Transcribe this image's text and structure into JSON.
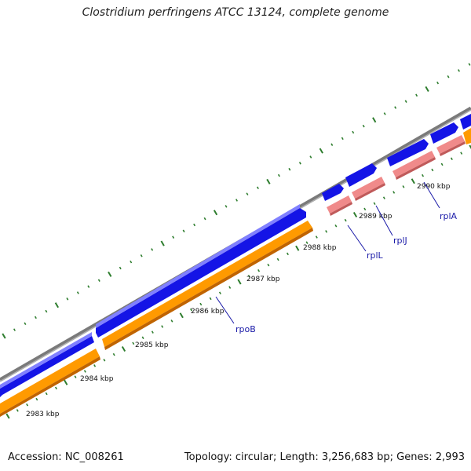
{
  "title": "Clostridium perfringens ATCC 13124, complete genome",
  "footer": {
    "accession": "Accession: NC_008261",
    "summary": "Topology: circular; Length: 3,256,683 bp; Genes: 2,993"
  },
  "colors": {
    "backbone": "#8a8a8a",
    "cds_forward": "#1414e6",
    "cds_reverse": "#ff9a00",
    "rrna_trna": "#f08a8a",
    "tick": "#2e7d2e",
    "leader": "#1a1aa8"
  },
  "scale_labels": [
    "2983 kbp",
    "2984 kbp",
    "2985 kbp",
    "2986 kbp",
    "2987 kbp",
    "2988 kbp",
    "2989 kbp",
    "2990 kbp"
  ],
  "genes": [
    {
      "name": "rpoB"
    },
    {
      "name": "rplL"
    },
    {
      "name": "rplJ"
    },
    {
      "name": "rplA"
    }
  ]
}
